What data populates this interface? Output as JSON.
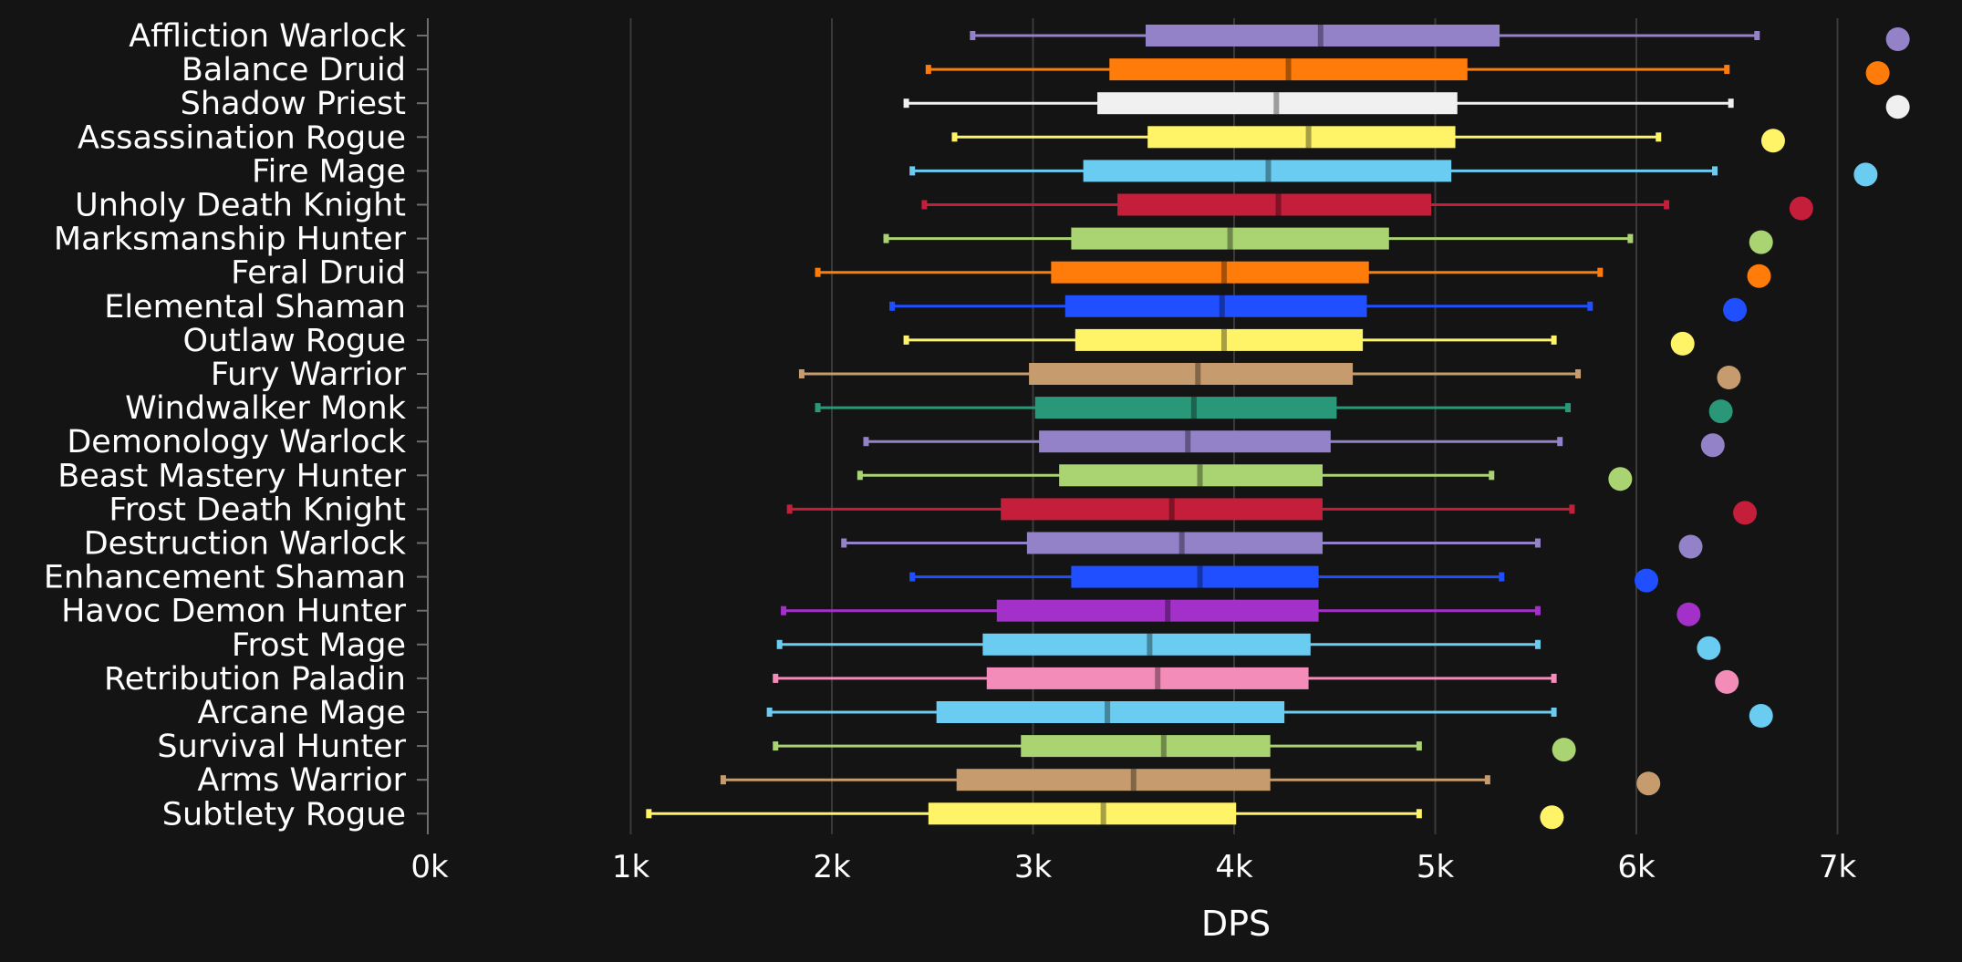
{
  "chart_data": {
    "type": "box",
    "title": "",
    "xlabel": "DPS",
    "ylabel": "",
    "xlim": [
      0,
      7400
    ],
    "xticks": [
      {
        "value": 0,
        "label": "0k"
      },
      {
        "value": 1000,
        "label": "1k"
      },
      {
        "value": 2000,
        "label": "2k"
      },
      {
        "value": 3000,
        "label": "3k"
      },
      {
        "value": 4000,
        "label": "4k"
      },
      {
        "value": 5000,
        "label": "5k"
      },
      {
        "value": 6000,
        "label": "6k"
      },
      {
        "value": 7000,
        "label": "7k"
      }
    ],
    "grid": "vertical",
    "legend": "none",
    "series": [
      {
        "label": "Affliction Warlock",
        "color": "#9482C9",
        "whisker_low": 2700,
        "q1": 3560,
        "median": 4430,
        "q3": 5320,
        "whisker_high": 6600,
        "max": 7300
      },
      {
        "label": "Balance Druid",
        "color": "#FF7C0A",
        "whisker_low": 2480,
        "q1": 3380,
        "median": 4270,
        "q3": 5160,
        "whisker_high": 6450,
        "max": 7200
      },
      {
        "label": "Shadow Priest",
        "color": "#F0F0F0",
        "whisker_low": 2370,
        "q1": 3320,
        "median": 4210,
        "q3": 5110,
        "whisker_high": 6470,
        "max": 7300
      },
      {
        "label": "Assassination Rogue",
        "color": "#FFF468",
        "whisker_low": 2610,
        "q1": 3570,
        "median": 4370,
        "q3": 5100,
        "whisker_high": 6110,
        "max": 6680
      },
      {
        "label": "Fire Mage",
        "color": "#69CCF0",
        "whisker_low": 2400,
        "q1": 3250,
        "median": 4170,
        "q3": 5080,
        "whisker_high": 6390,
        "max": 7140
      },
      {
        "label": "Unholy Death Knight",
        "color": "#C41E3A",
        "whisker_low": 2460,
        "q1": 3420,
        "median": 4220,
        "q3": 4980,
        "whisker_high": 6150,
        "max": 6820
      },
      {
        "label": "Marksmanship Hunter",
        "color": "#AAD372",
        "whisker_low": 2270,
        "q1": 3190,
        "median": 3980,
        "q3": 4770,
        "whisker_high": 5970,
        "max": 6620
      },
      {
        "label": "Feral Druid",
        "color": "#FF7C0A",
        "whisker_low": 1930,
        "q1": 3090,
        "median": 3950,
        "q3": 4670,
        "whisker_high": 5820,
        "max": 6610
      },
      {
        "label": "Elemental Shaman",
        "color": "#1F4FFF",
        "whisker_low": 2300,
        "q1": 3160,
        "median": 3940,
        "q3": 4660,
        "whisker_high": 5770,
        "max": 6490
      },
      {
        "label": "Outlaw Rogue",
        "color": "#FFF468",
        "whisker_low": 2370,
        "q1": 3210,
        "median": 3950,
        "q3": 4640,
        "whisker_high": 5590,
        "max": 6230
      },
      {
        "label": "Fury Warrior",
        "color": "#C69B6D",
        "whisker_low": 1850,
        "q1": 2980,
        "median": 3820,
        "q3": 4590,
        "whisker_high": 5710,
        "max": 6460
      },
      {
        "label": "Windwalker Monk",
        "color": "#2A9878",
        "whisker_low": 1930,
        "q1": 3010,
        "median": 3800,
        "q3": 4510,
        "whisker_high": 5660,
        "max": 6420
      },
      {
        "label": "Demonology Warlock",
        "color": "#9482C9",
        "whisker_low": 2170,
        "q1": 3030,
        "median": 3770,
        "q3": 4480,
        "whisker_high": 5620,
        "max": 6380
      },
      {
        "label": "Beast Mastery Hunter",
        "color": "#AAD372",
        "whisker_low": 2140,
        "q1": 3130,
        "median": 3830,
        "q3": 4440,
        "whisker_high": 5280,
        "max": 5920
      },
      {
        "label": "Frost Death Knight",
        "color": "#C41E3A",
        "whisker_low": 1790,
        "q1": 2840,
        "median": 3690,
        "q3": 4440,
        "whisker_high": 5680,
        "max": 6540
      },
      {
        "label": "Destruction Warlock",
        "color": "#9482C9",
        "whisker_low": 2060,
        "q1": 2970,
        "median": 3740,
        "q3": 4440,
        "whisker_high": 5510,
        "max": 6270
      },
      {
        "label": "Enhancement Shaman",
        "color": "#1F4FFF",
        "whisker_low": 2400,
        "q1": 3190,
        "median": 3830,
        "q3": 4420,
        "whisker_high": 5330,
        "max": 6050
      },
      {
        "label": "Havoc Demon Hunter",
        "color": "#A330C9",
        "whisker_low": 1760,
        "q1": 2820,
        "median": 3670,
        "q3": 4420,
        "whisker_high": 5510,
        "max": 6260
      },
      {
        "label": "Frost Mage",
        "color": "#69CCF0",
        "whisker_low": 1740,
        "q1": 2750,
        "median": 3580,
        "q3": 4380,
        "whisker_high": 5510,
        "max": 6360
      },
      {
        "label": "Retribution Paladin",
        "color": "#F48CBA",
        "whisker_low": 1720,
        "q1": 2770,
        "median": 3620,
        "q3": 4370,
        "whisker_high": 5590,
        "max": 6450
      },
      {
        "label": "Arcane Mage",
        "color": "#69CCF0",
        "whisker_low": 1690,
        "q1": 2520,
        "median": 3370,
        "q3": 4250,
        "whisker_high": 5590,
        "max": 6620
      },
      {
        "label": "Survival Hunter",
        "color": "#AAD372",
        "whisker_low": 1720,
        "q1": 2940,
        "median": 3650,
        "q3": 4180,
        "whisker_high": 4920,
        "max": 5640
      },
      {
        "label": "Arms Warrior",
        "color": "#C69B6D",
        "whisker_low": 1460,
        "q1": 2620,
        "median": 3500,
        "q3": 4180,
        "whisker_high": 5260,
        "max": 6060
      },
      {
        "label": "Subtlety Rogue",
        "color": "#FFF468",
        "whisker_low": 1090,
        "q1": 2480,
        "median": 3350,
        "q3": 4010,
        "whisker_high": 4920,
        "max": 5580
      }
    ]
  }
}
